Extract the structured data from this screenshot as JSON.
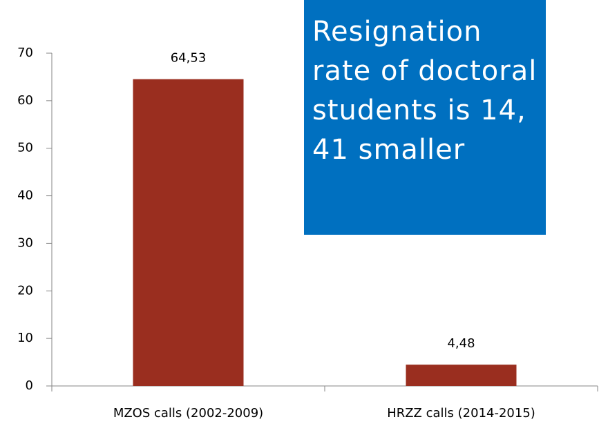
{
  "chart_data": {
    "type": "bar",
    "categories": [
      "MZOS calls (2002-2009)",
      "HRZZ calls (2014-2015)"
    ],
    "values": [
      64.53,
      4.48
    ],
    "value_labels": [
      "64,53",
      "4,48"
    ],
    "color": "#9a2e1f",
    "ylim": [
      0,
      70
    ],
    "yticks": [
      0,
      10,
      20,
      30,
      40,
      50,
      60,
      70
    ],
    "annotation": "Resignation rate of doctoral students is 14, 41 smaller"
  }
}
